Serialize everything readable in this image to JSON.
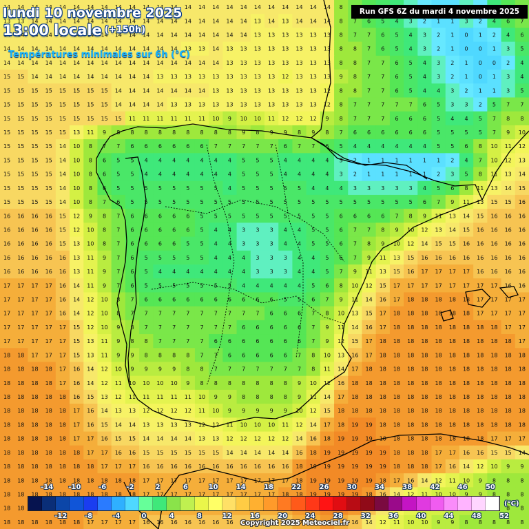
{
  "header": {
    "date_title": "lundi 10 novembre 2025",
    "local_time": "13:00 locale",
    "lead_time": "(+150h)",
    "parameter": "Températures minimales sur 6h (°C)"
  },
  "run_info": "Run GFS 6Z du mardi 4 novembre 2025",
  "legend": {
    "unit": "(°C)",
    "top_labels": [
      "-14",
      "-10",
      "-6",
      "-2",
      "2",
      "6",
      "10",
      "14",
      "18",
      "22",
      "26",
      "30",
      "34",
      "38",
      "42",
      "46",
      "50"
    ],
    "bottom_labels": [
      "-12",
      "-8",
      "-4",
      "0",
      "4",
      "8",
      "12",
      "16",
      "20",
      "24",
      "28",
      "32",
      "36",
      "40",
      "44",
      "48",
      "52"
    ],
    "colors": [
      "#06134f",
      "#0a2e78",
      "#0c46a8",
      "#1055d8",
      "#1a3df0",
      "#2a7bff",
      "#2fb0ff",
      "#4fd8ff",
      "#66ff99",
      "#3fe87a",
      "#8ae34a",
      "#bff050",
      "#eaf64a",
      "#ffff66",
      "#ffe066",
      "#ffcc44",
      "#ffb030",
      "#ff9a2a",
      "#ff7a22",
      "#ff5a1a",
      "#ff3818",
      "#ff1414",
      "#e10d12",
      "#b80c14",
      "#900a18",
      "#7a0a40",
      "#9a0a8a",
      "#c414c4",
      "#e03ae0",
      "#f05cf0",
      "#fa8cfa",
      "#ffb4ff",
      "#ffd6ff",
      "#ffffff"
    ]
  },
  "copyright": "Copyright 2025 Meteociel.fr",
  "map_data": {
    "columns": 38,
    "rows": 38,
    "rows_values": [
      "14 14 14 14 14 14 14 14 14 14 14 14 14 14 14 14 14 14 14 14 14 14 14 14 8 7 6 5 4 3 2 1 1 3 2 4 6 7",
      "13 13 14 14 14 14 14 14 14 14 14 14 14 14 14 14 14 14 13 14 13 14 14 14 8 7 6 5 4 3 2 1 1 3 2 4 6 7",
      "14 14 14 14 14 14 14 14 14 14 14 14 14 14 14 14 14 14 13 13 13 13 13 13 8 7 7 6 5 4 3 2 1 0 1 2 4 6",
      "14 14 14 14 14 14 14 14 14 14 14 14 14 13 13 14 13 13 13 13 13 13 13 13 8 8 7 6 5 4 3 2 1 0 0 1 3 5",
      "14 14 14 14 14 14 14 14 14 14 14 14 14 14 14 14 13 13 13 13 13 13 13 13 8 8 7 7 6 5 4 3 2 1 0 0 2 4",
      "15 15 14 14 14 14 14 14 14 14 14 13 13 13 13 13 13 13 13 13 12 13 13 13 9 8 7 7 6 5 4 3 2 1 0 1 3 4",
      "15 15 15 15 15 15 15 15 14 14 14 14 14 14 14 13 13 13 13 13 13 13 13 12 8 8 7 7 6 5 4 4 3 2 1 1 3 5",
      "15 15 15 15 15 15 15 15 14 14 14 14 13 13 13 13 13 13 13 13 13 13 13 12 8 7 7 7 7 7 6 5 3 3 2 5 7 7",
      "15 15 15 15 15 15 15 15 15 11 11 11 11 11 11 10 9 10 10 11 12 12 12 9 8 7 7 7 6 6 6 5 4 4 5 7 8 8",
      "15 15 15 15 15 13 11 9 8 8 8 8 8 8 8 8 8 9 8 9 9 8 9 8 7 6 6 6 6 6 6 5 5 5 5 7 9 10",
      "15 15 15 15 14 10 8 7 7 6 6 6 6 6 6 7 7 7 7 7 6 7 7 6 5 4 4 4 4 4 4 5 5 6 8 10 11 12",
      "15 15 15 15 14 10 8 6 5 5 4 4 4 4 4 4 4 5 5 5 4 4 4 4 3 2 1 1 1 1 1 1 2 4 7 10 12 13",
      "15 15 15 15 14 10 8 6 5 5 4 4 4 4 4 4 4 5 5 5 4 4 4 4 3 2 1 1 1 1 1 2 3 5 8 11 13 14",
      "15 15 15 15 14 10 8 6 5 5 5 5 5 5 5 5 4 5 5 5 5 5 4 4 4 3 3 3 3 3 4 5 6 8 11 13 14 15",
      "15 15 15 15 14 10 8 7 6 5 5 5 5 5 5 5 5 5 5 5 5 5 5 5 5 5 5 5 5 5 6 7 9 11 13 15 15 16",
      "16 16 16 16 15 12 9 8 7 6 6 6 6 6 5 5 5 5 5 5 5 5 5 5 6 6 6 6 7 8 9 11 13 14 15 16 16 16",
      "16 16 16 16 15 12 10 8 7 6 6 6 6 6 5 4 4 3 3 3 4 4 5 5 6 7 7 8 9 10 12 13 14 15 16 16 16 16",
      "16 16 16 16 15 13 10 8 7 6 6 6 6 5 5 4 4 3 3 3 4 4 5 5 6 7 8 9 10 12 14 15 15 16 16 16 16 16",
      "16 16 16 16 16 13 11 9 7 6 5 5 5 5 5 4 4 4 3 3 3 4 4 5 6 7 9 11 13 15 16 16 16 16 16 16 16 16",
      "16 16 16 16 16 13 11 9 7 6 5 4 4 4 4 4 4 4 3 3 3 4 4 5 7 9 11 13 15 16 17 17 17 17 16 16 16 16",
      "17 17 17 17 16 14 11 9 7 6 5 5 5 5 5 5 5 4 4 4 4 4 5 6 8 10 12 15 17 17 17 17 17 17 17 17 16 16",
      "17 17 17 17 16 14 12 10 8 7 6 6 6 6 6 6 6 6 6 6 5 5 6 7 9 11 14 16 17 18 18 18 18 18 17 17 17 17",
      "17 17 17 17 16 14 12 10 8 7 7 7 7 7 7 7 7 7 7 6 6 6 7 8 10 13 15 17 18 18 18 18 18 18 17 17 17 17",
      "17 17 17 17 17 15 12 10 9 8 7 7 7 7 7 7 7 6 6 6 6 6 7 9 11 14 16 17 18 18 18 18 18 18 18 18 17 17",
      "17 17 17 17 17 15 13 11 9 8 8 7 7 7 7 6 6 6 6 6 6 6 7 9 12 15 17 18 18 18 18 18 18 18 18 18 18 17",
      "18 18 17 17 17 15 13 11 9 9 8 8 8 8 7 7 6 6 6 6 6 7 8 10 13 16 17 18 18 18 18 18 18 18 18 18 18 18",
      "18 18 18 18 17 16 14 12 10 9 9 9 9 8 8 7 7 7 7 7 7 7 8 11 14 17 18 18 18 18 18 18 18 18 18 18 18 18",
      "18 18 18 18 17 16 14 12 11 10 10 10 10 9 8 8 8 8 8 8 8 9 10 12 16 18 18 18 18 18 18 18 18 18 18 18 18 18",
      "18 18 18 18 18 16 15 13 12 11 11 11 11 11 10 9 9 8 8 8 8 9 11 14 17 18 18 18 18 18 18 18 18 18 18 18 18 18",
      "18 18 18 18 18 17 16 14 13 13 12 12 12 12 11 10 9 9 9 9 9 10 12 15 18 18 18 18 18 18 18 18 18 18 18 18 18 18",
      "18 18 18 18 18 17 16 15 14 14 13 13 13 13 12 12 11 10 10 10 11 12 14 17 18 19 19 18 18 18 18 18 18 18 18 18 18 18",
      "18 18 18 18 18 17 17 16 15 15 14 14 14 14 13 13 12 12 12 12 12 14 16 18 19 19 19 18 18 18 18 18 18 18 18 17 17 17",
      "18 18 18 18 18 18 17 17 16 16 15 15 15 15 15 15 14 14 14 14 14 16 18 19 19 19 19 19 18 18 18 17 17 16 16 15 15 14",
      "18 18 18 18 18 18 18 17 17 17 16 16 16 16 16 16 16 16 16 16 16 18 19 19 19 19 19 19 18 18 18 17 16 14 12 10 9 9",
      "18 18 18 18 18 18 18 18 18 18 17 17 17 17 17 17 17 17 17 17 17 18 19 19 19 19 19 18 17 16 14 12 11 10 9 8 8 8",
      "18 18 18 18 18 18 18 18 18 18 17 17 17 17 17 17 17 17 17 17 18 18 19 19 19 19 18 16 14 12 11 10 10 9 9 8 8 8",
      "18 18 18 18 18 18 18 17 17 17 17 17 17 17 17 17 17 17 17 17 17 18 18 19 19 18 16 14 12 11 10 10 9 9 8 8 8 8",
      "18 18 18 18 18 18 17 17 17 17 16 16 16 16 16 16 16 16 16 16 16 17 17 18 17 16 14 12 11 10 10 9 9 8 8 8 8 8"
    ]
  }
}
